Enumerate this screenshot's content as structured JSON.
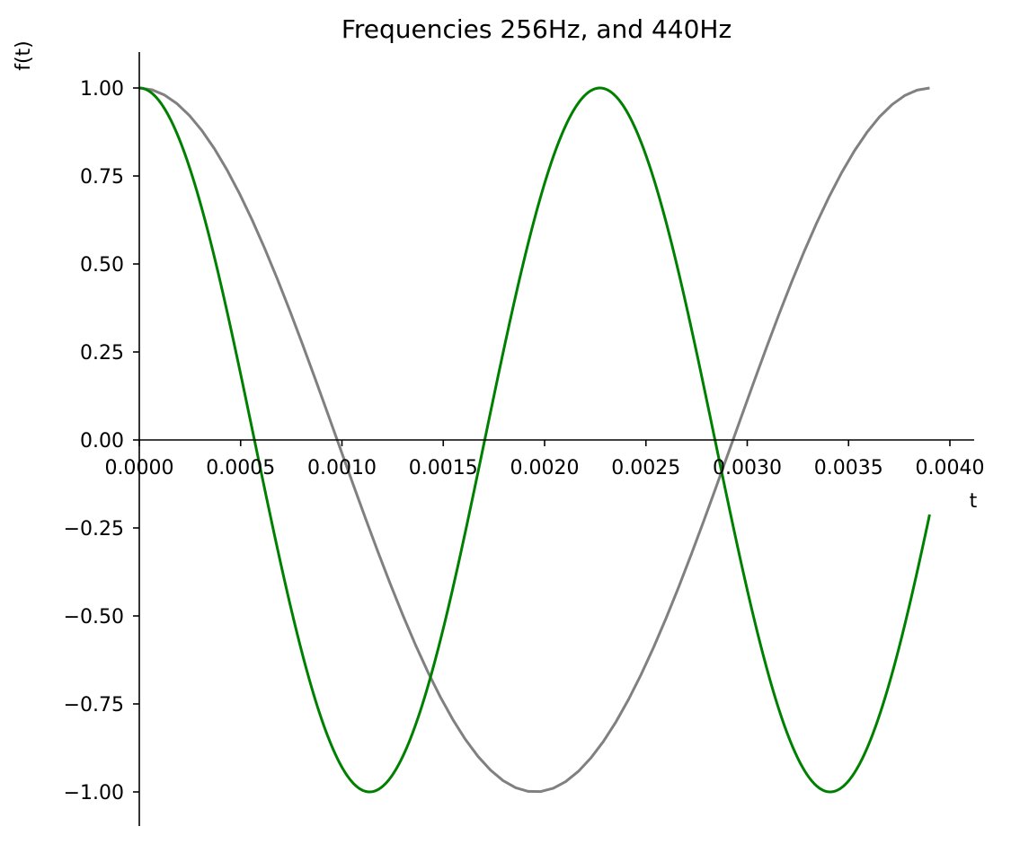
{
  "chart_data": {
    "type": "line",
    "title": "Frequencies 256Hz, and 440Hz",
    "xlabel": "t",
    "ylabel": "f(t)",
    "xlim": [
      0,
      0.0041
    ],
    "ylim": [
      -1.1,
      1.1
    ],
    "grid": false,
    "x_tick_labels": [
      "0.0000",
      "0.0005",
      "0.0010",
      "0.0015",
      "0.0020",
      "0.0025",
      "0.0030",
      "0.0035",
      "0.0040"
    ],
    "x_tick_values": [
      0,
      0.0005,
      0.001,
      0.0015,
      0.002,
      0.0025,
      0.003,
      0.0035,
      0.004
    ],
    "y_tick_labels": [
      "1.00",
      "0.75",
      "0.50",
      "0.25",
      "0.00",
      "−0.25",
      "−0.50",
      "−0.75",
      "−1.00"
    ],
    "y_tick_values": [
      1,
      0.75,
      0.5,
      0.25,
      0,
      -0.25,
      -0.5,
      -0.75,
      -1
    ],
    "series": [
      {
        "frequency_hz": 256,
        "function": "cos",
        "color": "#808080",
        "t_start": 0,
        "t_end": 0.0039,
        "sample_count": 64
      },
      {
        "frequency_hz": 440,
        "function": "cos",
        "color": "#008000",
        "t_start": 0,
        "t_end": 0.0039,
        "sample_count": 400
      }
    ]
  }
}
